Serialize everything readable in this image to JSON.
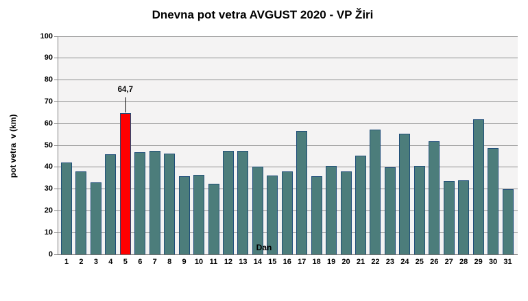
{
  "chart_data": {
    "type": "bar",
    "title": "Dnevna pot vetra AVGUST 2020 - VP Žiri",
    "xlabel": "Dan",
    "ylabel": "pot vetra  v (km)",
    "ylim": [
      0,
      100
    ],
    "ytick_step": 10,
    "yticks": [
      0,
      10,
      20,
      30,
      40,
      50,
      60,
      70,
      80,
      90,
      100
    ],
    "grid": true,
    "legend": "none",
    "categories": [
      "1",
      "2",
      "3",
      "4",
      "5",
      "6",
      "7",
      "8",
      "9",
      "10",
      "11",
      "12",
      "13",
      "14",
      "15",
      "16",
      "17",
      "18",
      "19",
      "20",
      "21",
      "22",
      "23",
      "24",
      "25",
      "26",
      "27",
      "28",
      "29",
      "30",
      "31"
    ],
    "values": [
      42.2,
      38.0,
      33.0,
      46.0,
      64.7,
      47.0,
      47.6,
      46.3,
      35.8,
      36.6,
      32.3,
      47.4,
      47.4,
      40.3,
      36.3,
      37.9,
      56.6,
      35.9,
      40.6,
      38.1,
      45.2,
      57.3,
      40.0,
      55.4,
      40.7,
      51.8,
      33.5,
      34.1,
      62.1,
      48.9,
      29.8
    ],
    "highlight": {
      "index": 4,
      "label": "64,7"
    },
    "colors": {
      "bar_fill": "#4C7D7B",
      "bar_border": "#1F4E79",
      "highlight_fill": "#FF0000",
      "plot_bg": "#F4F3F3",
      "gridline": "#8C8C8C",
      "axis_line": "#7F7F7F",
      "text": "#000000",
      "background": "#FFFFFF"
    }
  }
}
